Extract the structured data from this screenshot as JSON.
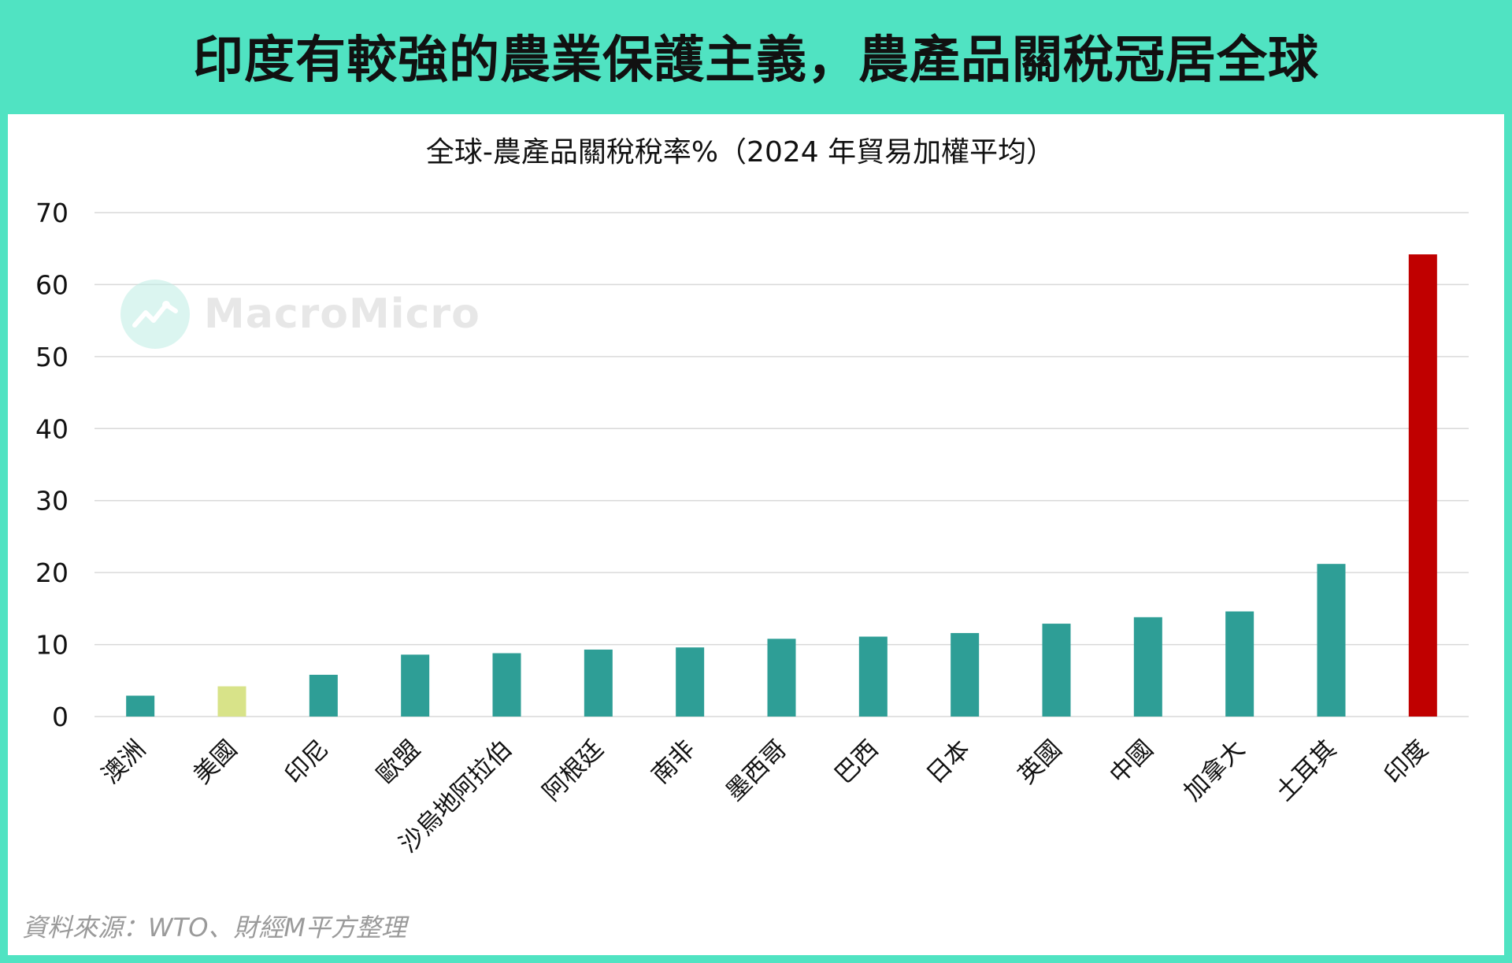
{
  "header": {
    "title": "印度有較強的農業保護主義，農產品關稅冠居全球"
  },
  "watermark": {
    "text": "MacroMicro",
    "icon": "macromicro-logo-icon"
  },
  "source": "資料來源：WTO、財經M平方整理",
  "colors": {
    "frame": "#50e3c2",
    "bar_default": "#2e9e96",
    "bar_us": "#d8e389",
    "bar_india": "#c00000",
    "grid": "#d9d9d9"
  },
  "chart_data": {
    "type": "bar",
    "title": "全球-農產品關稅稅率%（2024 年貿易加權平均）",
    "xlabel": "",
    "ylabel": "",
    "ylim": [
      0,
      70
    ],
    "yticks": [
      0,
      10,
      20,
      30,
      40,
      50,
      60,
      70
    ],
    "grid": true,
    "categories": [
      "澳洲",
      "美國",
      "印尼",
      "歐盟",
      "沙烏地阿拉伯",
      "阿根廷",
      "南非",
      "墨西哥",
      "巴西",
      "日本",
      "英國",
      "中國",
      "加拿大",
      "土耳其",
      "印度"
    ],
    "values": [
      2.9,
      4.2,
      5.8,
      8.6,
      8.8,
      9.3,
      9.6,
      10.8,
      11.1,
      11.6,
      12.9,
      13.8,
      14.6,
      21.2,
      64.2
    ],
    "bar_colors": [
      "#2e9e96",
      "#d8e389",
      "#2e9e96",
      "#2e9e96",
      "#2e9e96",
      "#2e9e96",
      "#2e9e96",
      "#2e9e96",
      "#2e9e96",
      "#2e9e96",
      "#2e9e96",
      "#2e9e96",
      "#2e9e96",
      "#2e9e96",
      "#c00000"
    ]
  }
}
